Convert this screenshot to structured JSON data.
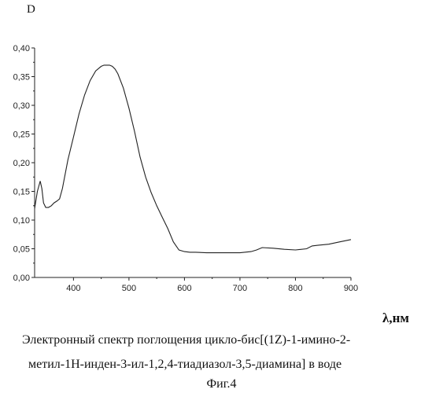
{
  "chart_data": {
    "type": "line",
    "ylabel": "D",
    "xlabel": "λ,нм",
    "xlim": [
      330,
      900
    ],
    "ylim": [
      0,
      0.4
    ],
    "xticks": [
      400,
      500,
      600,
      700,
      800,
      900
    ],
    "xtick_labels": [
      "400",
      "500",
      "600",
      "700",
      "800",
      "900"
    ],
    "yticks": [
      0,
      0.05,
      0.1,
      0.15,
      0.2,
      0.25,
      0.3,
      0.35,
      0.4
    ],
    "ytick_labels": [
      "0,00",
      "0,05",
      "0,10",
      "0,15",
      "0,20",
      "0,25",
      "0,30",
      "0,35",
      "0,40"
    ],
    "grid": false,
    "series": [
      {
        "x": [
          330,
          335,
          340,
          343,
          346,
          350,
          355,
          360,
          365,
          370,
          375,
          380,
          385,
          390,
          400,
          410,
          420,
          430,
          440,
          450,
          455,
          460,
          465,
          470,
          475,
          480,
          490,
          500,
          510,
          520,
          530,
          540,
          550,
          560,
          570,
          580,
          590,
          600,
          610,
          620,
          640,
          660,
          680,
          700,
          720,
          730,
          740,
          760,
          780,
          800,
          820,
          830,
          840,
          860,
          880,
          900
        ],
        "y": [
          0.12,
          0.15,
          0.168,
          0.155,
          0.13,
          0.122,
          0.122,
          0.125,
          0.13,
          0.133,
          0.137,
          0.155,
          0.18,
          0.205,
          0.245,
          0.285,
          0.318,
          0.343,
          0.36,
          0.368,
          0.37,
          0.37,
          0.37,
          0.368,
          0.363,
          0.355,
          0.33,
          0.295,
          0.255,
          0.21,
          0.175,
          0.148,
          0.125,
          0.105,
          0.085,
          0.062,
          0.048,
          0.045,
          0.044,
          0.044,
          0.043,
          0.043,
          0.043,
          0.043,
          0.045,
          0.048,
          0.052,
          0.051,
          0.049,
          0.048,
          0.05,
          0.055,
          0.056,
          0.058,
          0.062,
          0.066
        ]
      }
    ]
  },
  "caption": {
    "line1": "Электронный спектр поглощения цикло-бис[(1Z)-1-имино-2-",
    "line2": "метил-1H-инден-3-ил-1,2,4-тиадиазол-3,5-диамина]  в воде",
    "line3": "Фиг.4"
  }
}
